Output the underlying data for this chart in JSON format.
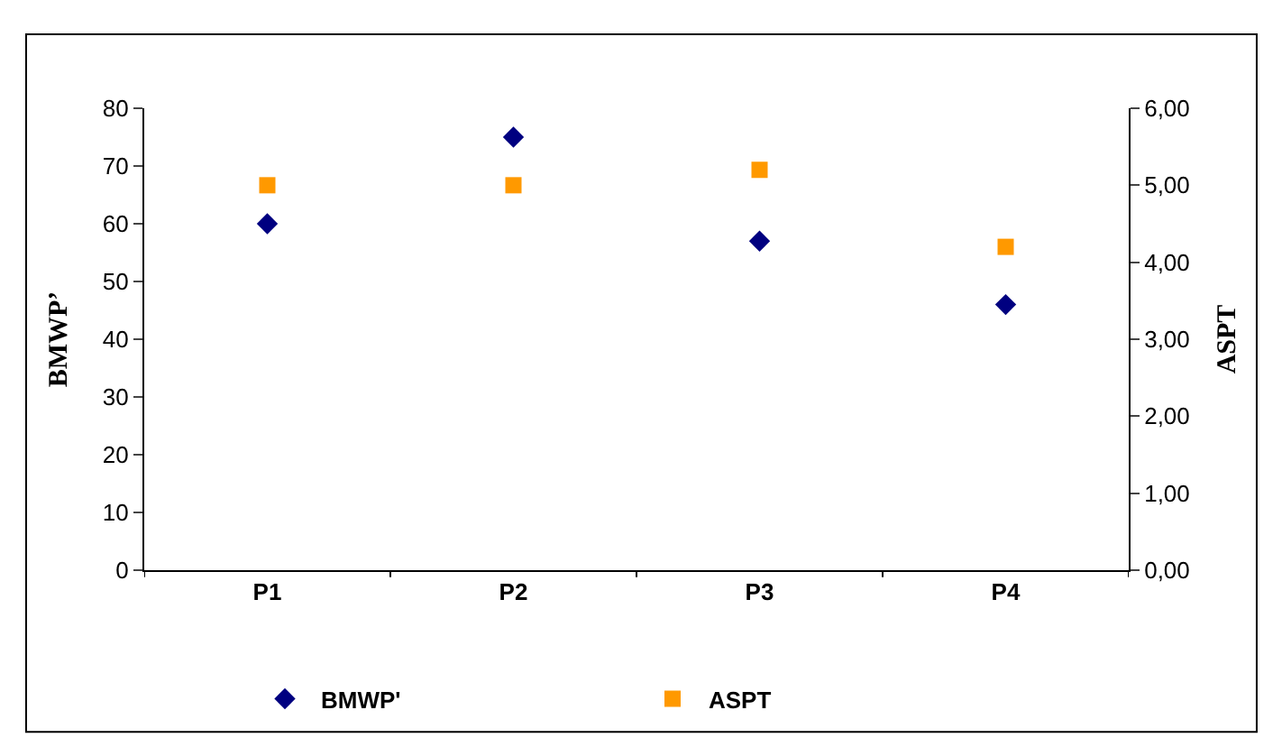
{
  "chart_data": {
    "type": "scatter",
    "categories": [
      "P1",
      "P2",
      "P3",
      "P4"
    ],
    "ylabel": "BMWP’",
    "y2label": "ASPT",
    "ylim": [
      0,
      80
    ],
    "yticks": [
      0,
      10,
      20,
      30,
      40,
      50,
      60,
      70,
      80
    ],
    "y2lim": [
      0,
      6
    ],
    "y2ticks": [
      {
        "value": 0,
        "label": "0,00"
      },
      {
        "value": 1,
        "label": "1,00"
      },
      {
        "value": 2,
        "label": "2,00"
      },
      {
        "value": 3,
        "label": "3,00"
      },
      {
        "value": 4,
        "label": "4,00"
      },
      {
        "value": 5,
        "label": "5,00"
      },
      {
        "value": 6,
        "label": "6,00"
      }
    ],
    "legend": "bottom",
    "series": [
      {
        "name": "BMWP'",
        "color": "#000080",
        "marker": "diamond",
        "values": [
          60,
          75,
          57,
          46
        ]
      },
      {
        "name": "ASPT",
        "color": "#ff9900",
        "marker": "square",
        "axis": "y2",
        "values": [
          5.0,
          5.0,
          5.2,
          4.2
        ]
      }
    ]
  }
}
